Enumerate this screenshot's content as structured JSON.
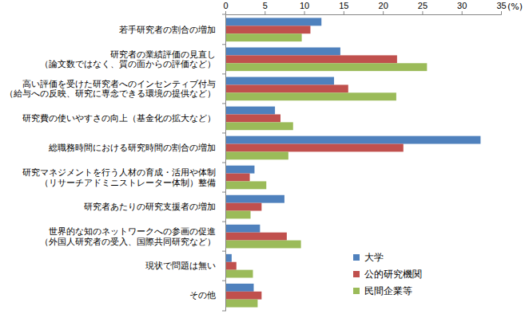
{
  "chart_data": {
    "type": "bar",
    "orientation": "horizontal",
    "xlabel": "(%)",
    "categories": [
      "若手研究者の割合の増加",
      "研究者の業績評価の見直し\n（論文数ではなく、質の面からの評価など）",
      "高い評価を受けた研究者へのインセンティブ付与\n（給与への反映、研究に専念できる環境の提供など）",
      "研究費の使いやすさの向上（基金化の拡大など）",
      "総職務時間における研究時間の割合の増加",
      "研究マネジメントを行う人材の育成・活用や体制\n（リサーチアドミニストレーター体制）整備",
      "研究者あたりの研究支援者の増加",
      "世界的な知のネットワークへの参画の促進\n（外国人研究者の受入、国際共同研究など）",
      "現状で問題は無い",
      "その他"
    ],
    "series": [
      {
        "name": "大学",
        "color": "#4f81bd",
        "values": [
          12.2,
          14.6,
          13.8,
          6.3,
          32.4,
          3.7,
          7.5,
          4.4,
          0.8,
          3.6
        ]
      },
      {
        "name": "公的研究機関",
        "color": "#c0504d",
        "values": [
          10.8,
          21.8,
          15.6,
          7.0,
          22.6,
          3.1,
          4.6,
          7.8,
          1.4,
          4.6
        ]
      },
      {
        "name": "民間企業等",
        "color": "#9bbb59",
        "values": [
          9.7,
          25.6,
          21.7,
          8.6,
          8.0,
          5.2,
          3.2,
          9.6,
          3.5,
          4.1
        ]
      }
    ],
    "xlim": [
      0,
      35
    ],
    "xticks": [
      0,
      5,
      10,
      15,
      20,
      25,
      30,
      35
    ],
    "grid": false,
    "legend": "lower right"
  }
}
